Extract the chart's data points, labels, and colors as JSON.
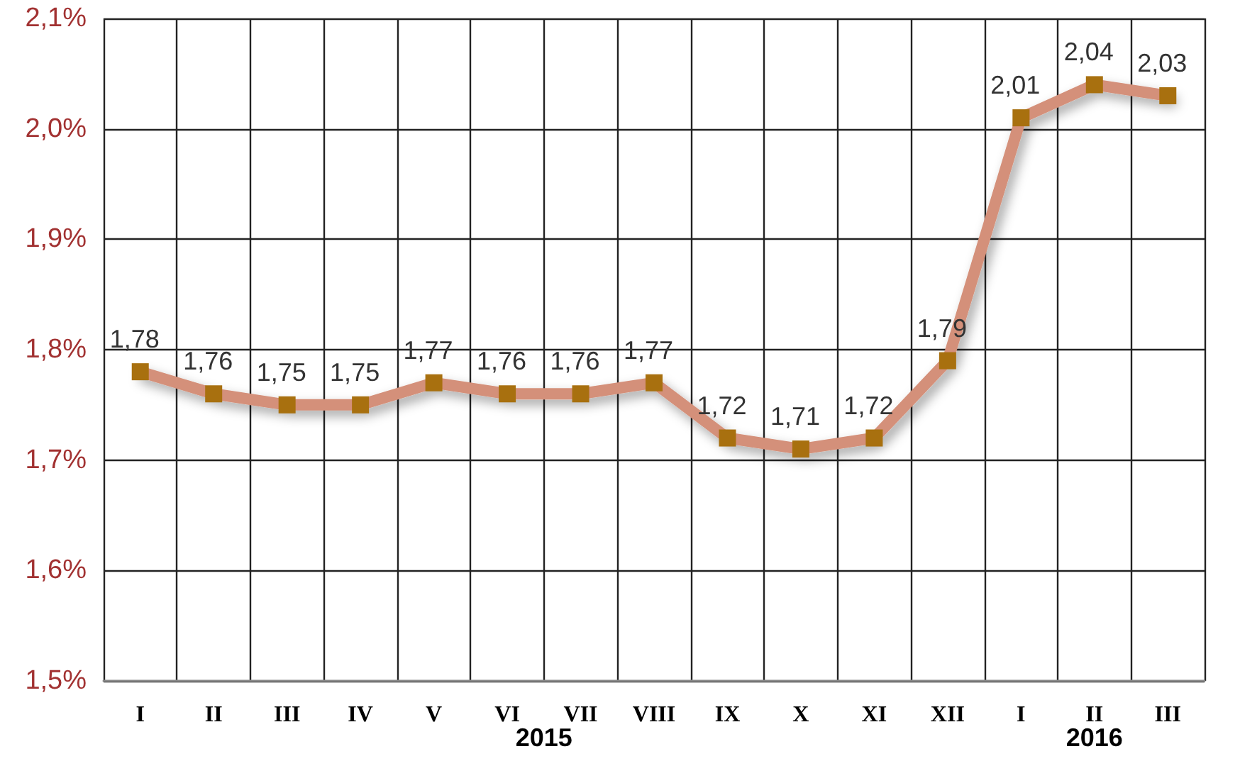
{
  "chart_data": {
    "type": "line",
    "categories": [
      "I",
      "II",
      "III",
      "IV",
      "V",
      "VI",
      "VII",
      "VIII",
      "IX",
      "X",
      "XI",
      "XII",
      "I",
      "II",
      "III"
    ],
    "series": [
      {
        "color": "#d4907a",
        "values": [
          1.78,
          1.76,
          1.75,
          1.75,
          1.77,
          1.76,
          1.76,
          1.77,
          1.72,
          1.71,
          1.72,
          1.79,
          2.01,
          2.04,
          2.03
        ]
      }
    ],
    "value_labels": [
      "1,78",
      "1,76",
      "1,75",
      "1,75",
      "1,77",
      "1,76",
      "1,76",
      "1,77",
      "1,72",
      "1,71",
      "1,72",
      "1,79",
      "2,01",
      "2,04",
      "2,03"
    ],
    "marker": "square",
    "ylim": [
      1.5,
      2.1
    ],
    "yticks": [
      {
        "value": 1.5,
        "label": "1,5%"
      },
      {
        "value": 1.6,
        "label": "1,6%"
      },
      {
        "value": 1.7,
        "label": "1,7%"
      },
      {
        "value": 1.8,
        "label": "1,8%"
      },
      {
        "value": 1.9,
        "label": "1,9%"
      },
      {
        "value": 2.0,
        "label": "2,0%"
      },
      {
        "value": 2.1,
        "label": "2,1%"
      }
    ],
    "grid": true,
    "annotations": [
      "2015",
      "2016"
    ]
  }
}
